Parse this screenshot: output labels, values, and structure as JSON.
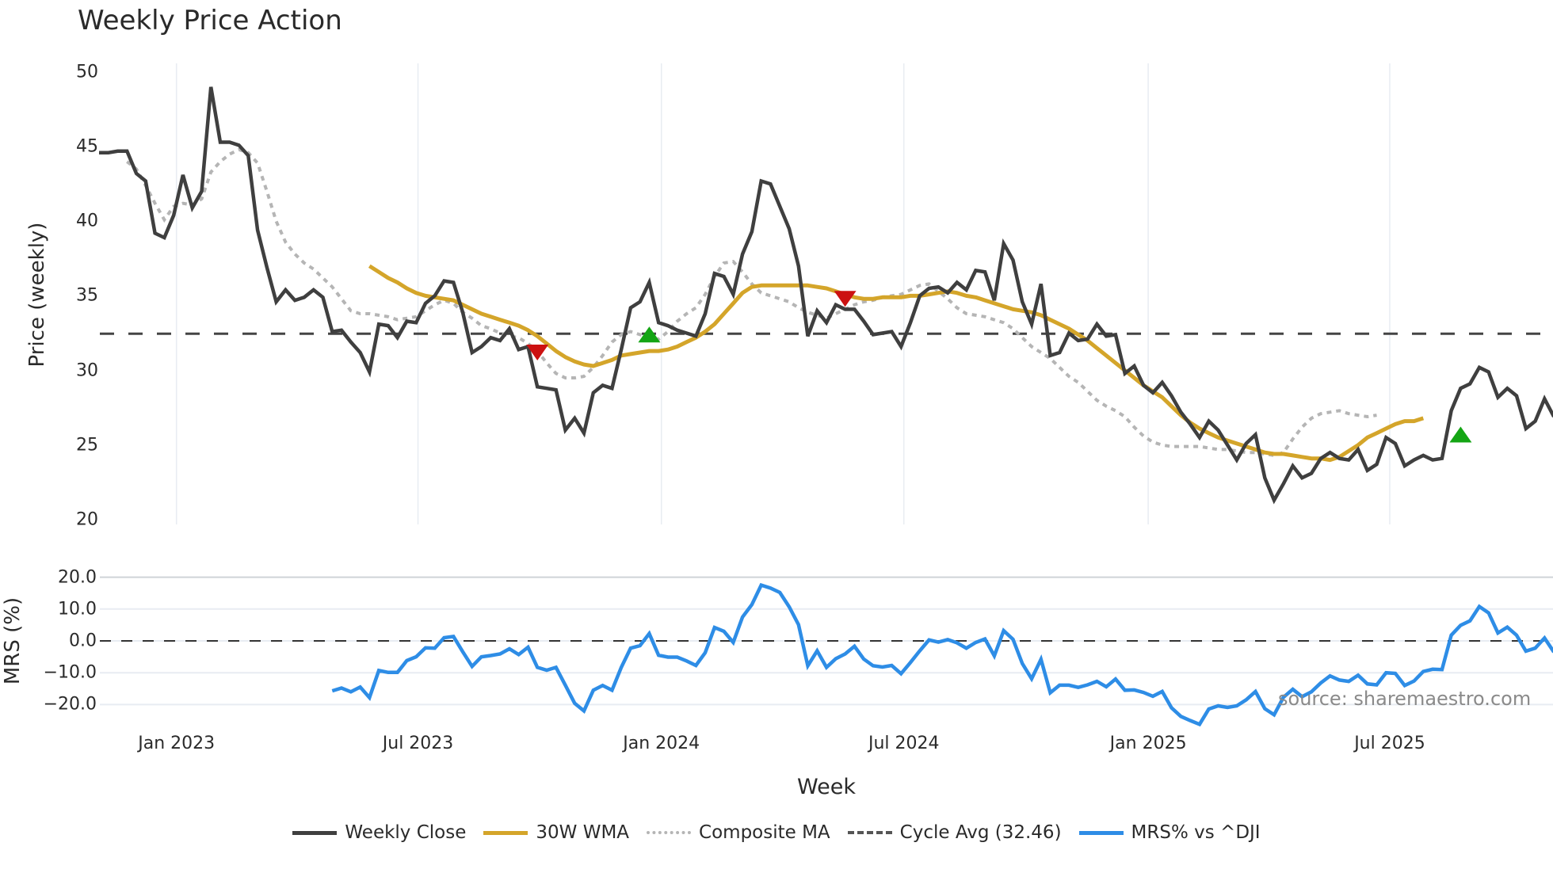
{
  "title": "Weekly Price Action",
  "source_text": "source: sharemaestro.com",
  "xaxis": {
    "label": "Week",
    "ticks": [
      {
        "label": "Jan 2023",
        "week": 8.3
      },
      {
        "label": "Jul 2023",
        "week": 34.2
      },
      {
        "label": "Jan 2024",
        "week": 60.3
      },
      {
        "label": "Jul 2024",
        "week": 86.3
      },
      {
        "label": "Jan 2025",
        "week": 112.5
      },
      {
        "label": "Jul 2025",
        "week": 138.4
      }
    ]
  },
  "price_axis": {
    "label": "Price (weekly)",
    "ticks": [
      "50",
      "45",
      "40",
      "35",
      "30",
      "25",
      "20"
    ],
    "range": [
      20,
      50
    ]
  },
  "mrs_axis": {
    "label": "MRS (%)",
    "ticks": [
      "20.0",
      "10.0",
      "0.0",
      "−10.0",
      "−20.0"
    ],
    "range": [
      -20,
      20
    ]
  },
  "legend": [
    {
      "label": "Weekly Close",
      "color": "#3f3f3f",
      "style": "solid"
    },
    {
      "label": "30W WMA",
      "color": "#d4a52a",
      "style": "solid"
    },
    {
      "label": "Composite MA",
      "color": "#b5b5b5",
      "style": "dotted"
    },
    {
      "label": "Cycle Avg (32.46)",
      "color": "#555555",
      "style": "dashed"
    },
    {
      "label": "MRS% vs ^DJI",
      "color": "#2e8de6",
      "style": "solid"
    }
  ],
  "colors": {
    "close": "#3f3f3f",
    "wma": "#d4a52a",
    "composite": "#b5b5b5",
    "cycle": "#444444",
    "mrs": "#2e8de6",
    "buy": "#14a514",
    "sell": "#cc1111",
    "grid": "#e8ecf2"
  },
  "chart_data": [
    {
      "type": "line",
      "title": "Weekly Price Action",
      "xlabel": "Week",
      "ylabel": "Price (weekly)",
      "ylim": [
        20,
        50
      ],
      "x_start_week_index": 0,
      "series": [
        {
          "name": "Weekly Close",
          "start": 0,
          "values": [
            44.6,
            44.6,
            44.7,
            44.7,
            43.2,
            42.7,
            39.2,
            38.9,
            40.4,
            43.1,
            40.9,
            42.0,
            49.0,
            45.3,
            45.3,
            45.1,
            44.4,
            39.4,
            36.9,
            34.6,
            35.4,
            34.7,
            34.9,
            35.4,
            34.9,
            32.6,
            32.7,
            31.9,
            31.2,
            29.9,
            33.1,
            33.0,
            32.2,
            33.3,
            33.2,
            34.5,
            35.0,
            36.0,
            35.9,
            33.9,
            31.2,
            31.6,
            32.2,
            32.0,
            32.8,
            31.4,
            31.6,
            28.9,
            28.8,
            28.7,
            26.0,
            26.8,
            25.8,
            28.5,
            29.0,
            28.8,
            31.4,
            34.2,
            34.6,
            35.9,
            33.2,
            33.0,
            32.7,
            32.5,
            32.3,
            33.8,
            36.5,
            36.3,
            35.1,
            37.8,
            39.3,
            42.7,
            42.5,
            41.0,
            39.5,
            37.0,
            32.3,
            34.0,
            33.2,
            34.4,
            34.1,
            34.1,
            33.3,
            32.4,
            32.5,
            32.6,
            31.6,
            33.2,
            35.0,
            35.5,
            35.6,
            35.2,
            35.9,
            35.4,
            36.7,
            36.6,
            34.7,
            38.5,
            37.4,
            34.6,
            33.1,
            35.8,
            31.0,
            31.2,
            32.5,
            32.0,
            32.1,
            33.1,
            32.3,
            32.4,
            29.8,
            30.3,
            29.0,
            28.5,
            29.2,
            28.3,
            27.2,
            26.4,
            25.5,
            26.6,
            26.0,
            25.0,
            24.0,
            25.1,
            25.7,
            22.8,
            21.3,
            22.4,
            23.6,
            22.8,
            23.1,
            24.1,
            24.5,
            24.1,
            24.0,
            24.7,
            23.3,
            23.7,
            25.5,
            25.1,
            23.6,
            24.0,
            24.3,
            24.0,
            24.1,
            27.3,
            28.8,
            29.1,
            30.2,
            29.9,
            28.2,
            28.8,
            28.3,
            26.1,
            26.6,
            28.1,
            26.9
          ]
        },
        {
          "name": "30W WMA",
          "start": 29,
          "values": [
            37.0,
            36.6,
            36.2,
            35.9,
            35.5,
            35.2,
            35.0,
            34.9,
            34.8,
            34.7,
            34.4,
            34.1,
            33.8,
            33.6,
            33.4,
            33.2,
            33.0,
            32.7,
            32.3,
            31.8,
            31.3,
            30.9,
            30.6,
            30.4,
            30.3,
            30.5,
            30.7,
            31.0,
            31.1,
            31.2,
            31.3,
            31.3,
            31.4,
            31.6,
            31.9,
            32.2,
            32.6,
            33.1,
            33.8,
            34.5,
            35.2,
            35.6,
            35.7,
            35.7,
            35.7,
            35.7,
            35.7,
            35.7,
            35.6,
            35.5,
            35.3,
            35.1,
            34.9,
            34.8,
            34.8,
            34.9,
            34.9,
            34.9,
            35.0,
            35.0,
            35.1,
            35.2,
            35.3,
            35.2,
            35.0,
            34.9,
            34.7,
            34.5,
            34.3,
            34.1,
            34.0,
            33.9,
            33.7,
            33.4,
            33.1,
            32.8,
            32.4,
            32.0,
            31.5,
            31.0,
            30.5,
            30.0,
            29.5,
            29.0,
            28.6,
            28.2,
            27.6,
            27.0,
            26.5,
            26.1,
            25.8,
            25.5,
            25.3,
            25.1,
            24.9,
            24.7,
            24.5,
            24.4,
            24.4,
            24.3,
            24.2,
            24.1,
            24.1,
            24.0,
            24.2,
            24.6,
            25.0,
            25.5,
            25.8,
            26.1,
            26.4,
            26.6,
            26.6,
            26.8
          ]
        },
        {
          "name": "Composite MA",
          "start": 3,
          "values": [
            44.0,
            43.5,
            42.4,
            41.2,
            40.1,
            41.0,
            41.2,
            41.1,
            41.5,
            43.3,
            44.0,
            44.5,
            44.8,
            44.6,
            43.9,
            42.0,
            40.0,
            38.6,
            37.8,
            37.2,
            36.8,
            36.2,
            35.6,
            34.8,
            34.0,
            33.8,
            33.8,
            33.7,
            33.6,
            33.4,
            33.5,
            33.6,
            34.0,
            34.4,
            34.7,
            34.5,
            33.9,
            33.5,
            33.0,
            32.8,
            32.5,
            32.3,
            32.2,
            31.8,
            31.3,
            30.5,
            29.8,
            29.5,
            29.5,
            29.6,
            30.2,
            31.0,
            31.9,
            32.4,
            32.6,
            32.4,
            32.2,
            32.1,
            32.6,
            33.3,
            33.8,
            34.2,
            35.1,
            36.3,
            37.2,
            37.3,
            36.6,
            35.8,
            35.2,
            35.0,
            34.8,
            34.6,
            34.2,
            33.9,
            33.7,
            33.5,
            33.8,
            34.1,
            34.4,
            34.6,
            34.7,
            34.9,
            35.0,
            35.1,
            35.4,
            35.7,
            35.8,
            35.3,
            34.8,
            34.2,
            33.8,
            33.7,
            33.6,
            33.4,
            33.2,
            32.8,
            32.2,
            31.6,
            31.2,
            30.8,
            30.2,
            29.6,
            29.2,
            28.6,
            28.0,
            27.6,
            27.3,
            26.9,
            26.2,
            25.6,
            25.2,
            25.0,
            24.9,
            24.9,
            24.9,
            24.9,
            24.8,
            24.7,
            24.7,
            24.6,
            24.5,
            24.5,
            24.4,
            24.3,
            24.5,
            25.4,
            26.2,
            26.8,
            27.1,
            27.2,
            27.3,
            27.1,
            27.0,
            26.9,
            27.0
          ]
        },
        {
          "name": "Cycle Avg (32.46)",
          "constant": 32.46
        }
      ],
      "markers": [
        {
          "type": "sell",
          "week": 47,
          "price": 31.2
        },
        {
          "type": "buy",
          "week": 59,
          "price": 32.3
        },
        {
          "type": "sell",
          "week": 80,
          "price": 34.8
        },
        {
          "type": "buy",
          "week": 146,
          "price": 25.6
        }
      ]
    },
    {
      "type": "line",
      "title": "",
      "ylabel": "MRS (%)",
      "ylim": [
        -20,
        20
      ],
      "series": [
        {
          "name": "MRS% vs ^DJI",
          "start": 25,
          "values": [
            -15.7,
            -14.8,
            -16.0,
            -14.5,
            -17.8,
            -9.3,
            -9.9,
            -9.9,
            -6.2,
            -5.0,
            -2.2,
            -2.3,
            1.0,
            1.4,
            -3.4,
            -8.0,
            -5.0,
            -4.6,
            -4.1,
            -2.5,
            -4.3,
            -2.0,
            -8.3,
            -9.2,
            -8.3,
            -13.9,
            -19.6,
            -22.0,
            -15.5,
            -14.0,
            -15.5,
            -8.3,
            -2.3,
            -1.5,
            2.3,
            -4.5,
            -5.1,
            -5.1,
            -6.3,
            -7.7,
            -3.7,
            4.2,
            3.0,
            -0.5,
            7.5,
            11.4,
            17.5,
            16.6,
            15.2,
            10.7,
            5.1,
            -7.8,
            -3.1,
            -8.3,
            -5.6,
            -4.1,
            -1.7,
            -5.7,
            -7.8,
            -8.2,
            -7.7,
            -10.3,
            -6.8,
            -3.1,
            0.3,
            -0.4,
            0.4,
            -0.6,
            -2.3,
            -0.5,
            0.6,
            -4.7,
            3.2,
            0.5,
            -7.1,
            -11.9,
            -5.8,
            -16.3,
            -13.9,
            -13.9,
            -14.6,
            -13.8,
            -12.7,
            -14.4,
            -12.0,
            -15.5,
            -15.4,
            -16.2,
            -17.4,
            -15.9,
            -21.0,
            -23.7,
            -25.0,
            -26.2,
            -21.4,
            -20.4,
            -20.9,
            -20.4,
            -18.5,
            -15.9,
            -21.3,
            -23.2,
            -17.7,
            -15.2,
            -17.5,
            -16.0,
            -13.2,
            -11.0,
            -12.3,
            -12.7,
            -10.8,
            -13.5,
            -13.8,
            -10.0,
            -10.2,
            -14.0,
            -12.6,
            -9.6,
            -8.9,
            -9.0,
            1.8,
            4.9,
            6.3,
            10.8,
            8.8,
            2.5,
            4.3,
            1.8,
            -3.2,
            -2.3,
            0.9,
            -3.5
          ]
        },
        {
          "name": "Zero line",
          "constant": 0
        }
      ]
    }
  ]
}
